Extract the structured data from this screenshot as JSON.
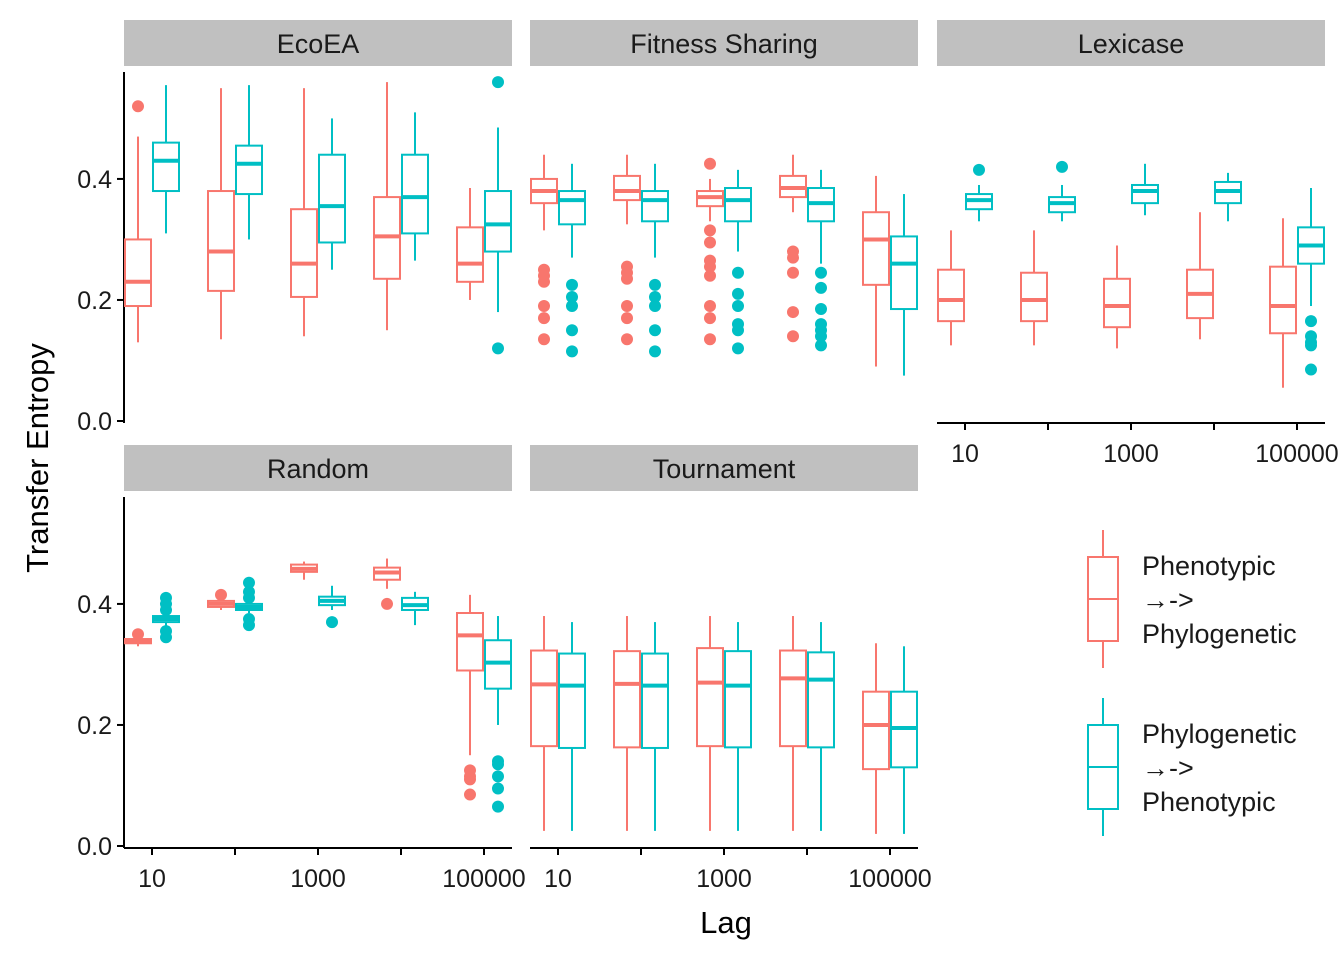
{
  "colors": {
    "phen_to_phyl": "#F8766D",
    "phyl_to_phen": "#00BFC4",
    "strip_bg": "#C0C0C0",
    "axis": "#000000"
  },
  "chart_data": {
    "type": "box",
    "xlabel": "Lag",
    "ylabel": "Transfer Entropy",
    "ylim": [
      0,
      0.58
    ],
    "y_ticks": [
      "0.0",
      "0.2",
      "0.4"
    ],
    "x_tick_labels": [
      "10",
      "1000",
      "100000"
    ],
    "x_scale": "log10",
    "lags": [
      10,
      100,
      1000,
      10000,
      100000
    ],
    "legend": {
      "position": "right",
      "entries": [
        {
          "key": "phen_to_phyl",
          "lines": [
            "Phenotypic",
            "→->",
            "Phylogenetic"
          ]
        },
        {
          "key": "phyl_to_phen",
          "lines": [
            "Phylogenetic",
            "→->",
            "Phenotypic"
          ]
        }
      ]
    },
    "facets": [
      {
        "name": "EcoEA",
        "phen_to_phyl": [
          {
            "lag": 10,
            "q1": 0.19,
            "med": 0.23,
            "q3": 0.3,
            "lo": 0.13,
            "hi": 0.47,
            "out": [
              0.52
            ]
          },
          {
            "lag": 100,
            "q1": 0.215,
            "med": 0.28,
            "q3": 0.38,
            "lo": 0.135,
            "hi": 0.55,
            "out": []
          },
          {
            "lag": 1000,
            "q1": 0.205,
            "med": 0.26,
            "q3": 0.35,
            "lo": 0.14,
            "hi": 0.55,
            "out": []
          },
          {
            "lag": 10000,
            "q1": 0.235,
            "med": 0.305,
            "q3": 0.37,
            "lo": 0.15,
            "hi": 0.56,
            "out": []
          },
          {
            "lag": 100000,
            "q1": 0.23,
            "med": 0.26,
            "q3": 0.32,
            "lo": 0.2,
            "hi": 0.385,
            "out": []
          }
        ],
        "phyl_to_phen": [
          {
            "lag": 10,
            "q1": 0.38,
            "med": 0.43,
            "q3": 0.46,
            "lo": 0.31,
            "hi": 0.555,
            "out": []
          },
          {
            "lag": 100,
            "q1": 0.375,
            "med": 0.425,
            "q3": 0.455,
            "lo": 0.3,
            "hi": 0.555,
            "out": []
          },
          {
            "lag": 1000,
            "q1": 0.295,
            "med": 0.355,
            "q3": 0.44,
            "lo": 0.25,
            "hi": 0.5,
            "out": []
          },
          {
            "lag": 10000,
            "q1": 0.31,
            "med": 0.37,
            "q3": 0.44,
            "lo": 0.265,
            "hi": 0.51,
            "out": []
          },
          {
            "lag": 100000,
            "q1": 0.28,
            "med": 0.325,
            "q3": 0.38,
            "lo": 0.18,
            "hi": 0.485,
            "out": [
              0.56,
              0.12
            ]
          }
        ]
      },
      {
        "name": "Fitness Sharing",
        "phen_to_phyl": [
          {
            "lag": 10,
            "q1": 0.36,
            "med": 0.38,
            "q3": 0.4,
            "lo": 0.315,
            "hi": 0.44,
            "out": [
              0.25,
              0.24,
              0.23,
              0.19,
              0.17,
              0.135
            ]
          },
          {
            "lag": 100,
            "q1": 0.365,
            "med": 0.38,
            "q3": 0.405,
            "lo": 0.325,
            "hi": 0.44,
            "out": [
              0.255,
              0.245,
              0.235,
              0.19,
              0.17,
              0.135
            ]
          },
          {
            "lag": 1000,
            "q1": 0.355,
            "med": 0.37,
            "q3": 0.38,
            "lo": 0.33,
            "hi": 0.4,
            "out": [
              0.425,
              0.315,
              0.295,
              0.265,
              0.255,
              0.24,
              0.19,
              0.17,
              0.135
            ]
          },
          {
            "lag": 10000,
            "q1": 0.37,
            "med": 0.385,
            "q3": 0.405,
            "lo": 0.345,
            "hi": 0.44,
            "out": [
              0.28,
              0.27,
              0.245,
              0.18,
              0.14
            ]
          },
          {
            "lag": 100000,
            "q1": 0.225,
            "med": 0.3,
            "q3": 0.345,
            "lo": 0.09,
            "hi": 0.405,
            "out": []
          }
        ],
        "phyl_to_phen": [
          {
            "lag": 10,
            "q1": 0.325,
            "med": 0.365,
            "q3": 0.38,
            "lo": 0.27,
            "hi": 0.425,
            "out": [
              0.225,
              0.205,
              0.19,
              0.15,
              0.115
            ]
          },
          {
            "lag": 100,
            "q1": 0.33,
            "med": 0.365,
            "q3": 0.38,
            "lo": 0.27,
            "hi": 0.425,
            "out": [
              0.225,
              0.205,
              0.19,
              0.15,
              0.115
            ]
          },
          {
            "lag": 1000,
            "q1": 0.33,
            "med": 0.365,
            "q3": 0.385,
            "lo": 0.28,
            "hi": 0.415,
            "out": [
              0.245,
              0.21,
              0.19,
              0.16,
              0.15,
              0.12
            ]
          },
          {
            "lag": 10000,
            "q1": 0.33,
            "med": 0.36,
            "q3": 0.385,
            "lo": 0.26,
            "hi": 0.415,
            "out": [
              0.245,
              0.22,
              0.185,
              0.16,
              0.15,
              0.14,
              0.125
            ]
          },
          {
            "lag": 100000,
            "q1": 0.185,
            "med": 0.26,
            "q3": 0.305,
            "lo": 0.075,
            "hi": 0.375,
            "out": []
          }
        ]
      },
      {
        "name": "Lexicase",
        "phen_to_phyl": [
          {
            "lag": 10,
            "q1": 0.165,
            "med": 0.2,
            "q3": 0.25,
            "lo": 0.125,
            "hi": 0.315,
            "out": []
          },
          {
            "lag": 100,
            "q1": 0.165,
            "med": 0.2,
            "q3": 0.245,
            "lo": 0.125,
            "hi": 0.315,
            "out": []
          },
          {
            "lag": 1000,
            "q1": 0.155,
            "med": 0.19,
            "q3": 0.235,
            "lo": 0.12,
            "hi": 0.29,
            "out": []
          },
          {
            "lag": 10000,
            "q1": 0.17,
            "med": 0.21,
            "q3": 0.25,
            "lo": 0.135,
            "hi": 0.345,
            "out": []
          },
          {
            "lag": 100000,
            "q1": 0.145,
            "med": 0.19,
            "q3": 0.255,
            "lo": 0.055,
            "hi": 0.335,
            "out": []
          }
        ],
        "phyl_to_phen": [
          {
            "lag": 10,
            "q1": 0.35,
            "med": 0.365,
            "q3": 0.375,
            "lo": 0.33,
            "hi": 0.39,
            "out": [
              0.415
            ]
          },
          {
            "lag": 100,
            "q1": 0.345,
            "med": 0.36,
            "q3": 0.37,
            "lo": 0.33,
            "hi": 0.39,
            "out": [
              0.42
            ]
          },
          {
            "lag": 1000,
            "q1": 0.36,
            "med": 0.38,
            "q3": 0.39,
            "lo": 0.34,
            "hi": 0.425,
            "out": []
          },
          {
            "lag": 10000,
            "q1": 0.36,
            "med": 0.38,
            "q3": 0.395,
            "lo": 0.33,
            "hi": 0.41,
            "out": []
          },
          {
            "lag": 100000,
            "q1": 0.26,
            "med": 0.29,
            "q3": 0.32,
            "lo": 0.19,
            "hi": 0.385,
            "out": [
              0.165,
              0.14,
              0.13,
              0.125,
              0.085
            ]
          }
        ]
      },
      {
        "name": "Random",
        "phen_to_phyl": [
          {
            "lag": 10,
            "q1": 0.335,
            "med": 0.338,
            "q3": 0.342,
            "lo": 0.33,
            "hi": 0.345,
            "out": [
              0.35
            ]
          },
          {
            "lag": 100,
            "q1": 0.395,
            "med": 0.4,
            "q3": 0.405,
            "lo": 0.39,
            "hi": 0.41,
            "out": [
              0.415
            ]
          },
          {
            "lag": 1000,
            "q1": 0.453,
            "med": 0.458,
            "q3": 0.465,
            "lo": 0.44,
            "hi": 0.47,
            "out": []
          },
          {
            "lag": 10000,
            "q1": 0.44,
            "med": 0.452,
            "q3": 0.46,
            "lo": 0.425,
            "hi": 0.475,
            "out": [
              0.4
            ]
          },
          {
            "lag": 100000,
            "q1": 0.29,
            "med": 0.348,
            "q3": 0.385,
            "lo": 0.15,
            "hi": 0.415,
            "out": [
              0.125,
              0.115,
              0.11,
              0.085
            ]
          }
        ],
        "phyl_to_phen": [
          {
            "lag": 10,
            "q1": 0.37,
            "med": 0.375,
            "q3": 0.38,
            "lo": 0.36,
            "hi": 0.39,
            "out": [
              0.41,
              0.4,
              0.39,
              0.355,
              0.345
            ]
          },
          {
            "lag": 100,
            "q1": 0.39,
            "med": 0.395,
            "q3": 0.4,
            "lo": 0.385,
            "hi": 0.41,
            "out": [
              0.435,
              0.42,
              0.41,
              0.375,
              0.365
            ]
          },
          {
            "lag": 1000,
            "q1": 0.398,
            "med": 0.405,
            "q3": 0.412,
            "lo": 0.39,
            "hi": 0.43,
            "out": [
              0.37
            ]
          },
          {
            "lag": 10000,
            "q1": 0.39,
            "med": 0.398,
            "q3": 0.41,
            "lo": 0.365,
            "hi": 0.42,
            "out": []
          },
          {
            "lag": 100000,
            "q1": 0.26,
            "med": 0.303,
            "q3": 0.34,
            "lo": 0.2,
            "hi": 0.38,
            "out": [
              0.14,
              0.135,
              0.115,
              0.095,
              0.065
            ]
          }
        ]
      },
      {
        "name": "Tournament",
        "phen_to_phyl": [
          {
            "lag": 10,
            "q1": 0.165,
            "med": 0.267,
            "q3": 0.323,
            "lo": 0.025,
            "hi": 0.38,
            "out": []
          },
          {
            "lag": 100,
            "q1": 0.163,
            "med": 0.268,
            "q3": 0.322,
            "lo": 0.025,
            "hi": 0.38,
            "out": []
          },
          {
            "lag": 1000,
            "q1": 0.165,
            "med": 0.27,
            "q3": 0.327,
            "lo": 0.025,
            "hi": 0.38,
            "out": []
          },
          {
            "lag": 10000,
            "q1": 0.165,
            "med": 0.277,
            "q3": 0.323,
            "lo": 0.025,
            "hi": 0.38,
            "out": []
          },
          {
            "lag": 100000,
            "q1": 0.127,
            "med": 0.2,
            "q3": 0.255,
            "lo": 0.02,
            "hi": 0.335,
            "out": []
          }
        ],
        "phyl_to_phen": [
          {
            "lag": 10,
            "q1": 0.162,
            "med": 0.265,
            "q3": 0.318,
            "lo": 0.025,
            "hi": 0.37,
            "out": []
          },
          {
            "lag": 100,
            "q1": 0.162,
            "med": 0.265,
            "q3": 0.318,
            "lo": 0.025,
            "hi": 0.37,
            "out": []
          },
          {
            "lag": 1000,
            "q1": 0.163,
            "med": 0.265,
            "q3": 0.322,
            "lo": 0.025,
            "hi": 0.37,
            "out": []
          },
          {
            "lag": 10000,
            "q1": 0.163,
            "med": 0.275,
            "q3": 0.32,
            "lo": 0.025,
            "hi": 0.37,
            "out": []
          },
          {
            "lag": 100000,
            "q1": 0.13,
            "med": 0.195,
            "q3": 0.255,
            "lo": 0.02,
            "hi": 0.33,
            "out": []
          }
        ]
      }
    ]
  }
}
